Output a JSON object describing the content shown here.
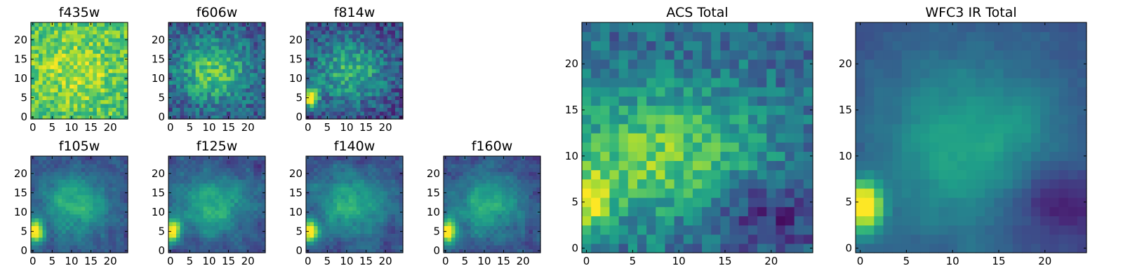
{
  "chart_data": [
    {
      "type": "heatmap",
      "title": "f435w",
      "xticks": [
        0,
        5,
        10,
        15,
        20
      ],
      "yticks": [
        0,
        5,
        10,
        15,
        20
      ],
      "xlim": [
        -0.5,
        24.5
      ],
      "ylim": [
        -0.5,
        24.5
      ],
      "grid_size": 25,
      "colormap": "viridis",
      "pattern": "noisy-uniform-bright"
    },
    {
      "type": "heatmap",
      "title": "f606w",
      "xticks": [
        0,
        5,
        10,
        15,
        20
      ],
      "yticks": [
        0,
        5,
        10,
        15,
        20
      ],
      "xlim": [
        -0.5,
        24.5
      ],
      "ylim": [
        -0.5,
        24.5
      ],
      "grid_size": 25,
      "colormap": "viridis",
      "pattern": "central-blob-bright"
    },
    {
      "type": "heatmap",
      "title": "f814w",
      "xticks": [
        0,
        5,
        10,
        15,
        20
      ],
      "yticks": [
        0,
        5,
        10,
        15,
        20
      ],
      "xlim": [
        -0.5,
        24.5
      ],
      "ylim": [
        -0.5,
        24.5
      ],
      "grid_size": 25,
      "colormap": "viridis",
      "pattern": "central-blob-left-source"
    },
    {
      "type": "heatmap",
      "title": "f105w",
      "xticks": [
        0,
        5,
        10,
        15,
        20
      ],
      "yticks": [
        0,
        5,
        10,
        15,
        20
      ],
      "xlim": [
        -0.5,
        24.5
      ],
      "ylim": [
        -0.5,
        24.5
      ],
      "grid_size": 25,
      "colormap": "viridis",
      "pattern": "smooth-blob-left-source"
    },
    {
      "type": "heatmap",
      "title": "f125w",
      "xticks": [
        0,
        5,
        10,
        15,
        20
      ],
      "yticks": [
        0,
        5,
        10,
        15,
        20
      ],
      "xlim": [
        -0.5,
        24.5
      ],
      "ylim": [
        -0.5,
        24.5
      ],
      "grid_size": 25,
      "colormap": "viridis",
      "pattern": "smooth-blob-left-source"
    },
    {
      "type": "heatmap",
      "title": "f140w",
      "xticks": [
        0,
        5,
        10,
        15,
        20
      ],
      "yticks": [
        0,
        5,
        10,
        15,
        20
      ],
      "xlim": [
        -0.5,
        24.5
      ],
      "ylim": [
        -0.5,
        24.5
      ],
      "grid_size": 25,
      "colormap": "viridis",
      "pattern": "smooth-blob-left-source"
    },
    {
      "type": "heatmap",
      "title": "f160w",
      "xticks": [
        0,
        5,
        10,
        15,
        20
      ],
      "yticks": [
        0,
        5,
        10,
        15,
        20
      ],
      "xlim": [
        -0.5,
        24.5
      ],
      "ylim": [
        -0.5,
        24.5
      ],
      "grid_size": 25,
      "colormap": "viridis",
      "pattern": "smooth-blob-left-source"
    },
    {
      "type": "heatmap",
      "title": "ACS Total",
      "xticks": [
        0,
        5,
        10,
        15,
        20
      ],
      "yticks": [
        0,
        5,
        10,
        15,
        20
      ],
      "xlim": [
        -0.5,
        24.5
      ],
      "ylim": [
        -0.5,
        24.5
      ],
      "grid_size": 25,
      "colormap": "viridis",
      "pattern": "acs-total"
    },
    {
      "type": "heatmap",
      "title": "WFC3 IR Total",
      "xticks": [
        0,
        5,
        10,
        15,
        20
      ],
      "yticks": [
        0,
        5,
        10,
        15,
        20
      ],
      "xlim": [
        -0.5,
        24.5
      ],
      "ylim": [
        -0.5,
        24.5
      ],
      "grid_size": 25,
      "colormap": "viridis",
      "pattern": "ir-total"
    }
  ]
}
